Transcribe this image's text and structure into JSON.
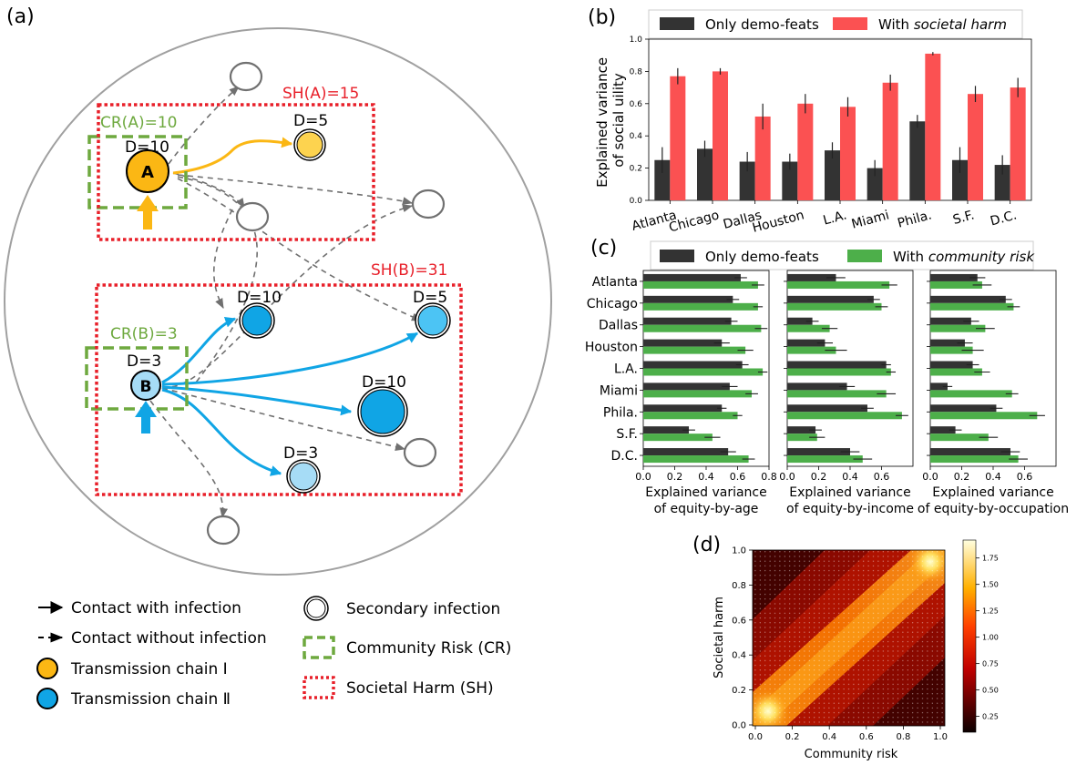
{
  "panel_a": {
    "label": "(a)",
    "nodes": {
      "a_label": "A",
      "b_label": "B",
      "a_deg": "D=10",
      "a_child_deg": "D=5",
      "b_deg": "D=3",
      "b_child1_deg": "D=10",
      "b_child2_deg": "D=5",
      "b_child3_deg": "D=10",
      "b_child4_deg": "D=3"
    },
    "cr_a": "CR(A)=10",
    "sh_a": "SH(A)=15",
    "cr_b": "CR(B)=3",
    "sh_b": "SH(B)=31",
    "legend": {
      "contact_infection": "Contact with infection",
      "contact_no_infection": "Contact without infection",
      "chain1": "Transmission chain Ⅰ",
      "chain2": "Transmission chain Ⅱ",
      "secondary": "Secondary infection",
      "cr": "Community Risk (CR)",
      "sh": "Societal Harm (SH)"
    },
    "colors": {
      "chain1": "#fbb714",
      "chain1_light": "#fdd34f",
      "chain2": "#10a5e5",
      "chain2_mid": "#4cc4f4",
      "chain2_light": "#a6dcf6",
      "cr": "#6ea93f",
      "sh": "#e8202a"
    }
  },
  "chart_data": [
    {
      "panel": "(b)",
      "type": "bar",
      "categories": [
        "Atlanta",
        "Chicago",
        "Dallas",
        "Houston",
        "L.A.",
        "Miami",
        "Phila.",
        "S.F.",
        "D.C."
      ],
      "series": [
        {
          "name": "Only demo-feats",
          "color": "#333333",
          "values": [
            0.25,
            0.32,
            0.24,
            0.24,
            0.31,
            0.2,
            0.49,
            0.25,
            0.22
          ],
          "err": [
            0.08,
            0.05,
            0.06,
            0.05,
            0.05,
            0.05,
            0.04,
            0.08,
            0.06
          ]
        },
        {
          "name_prefix": "With ",
          "name_em": "societal harm",
          "color": "#fb5152",
          "values": [
            0.77,
            0.8,
            0.52,
            0.6,
            0.58,
            0.73,
            0.91,
            0.66,
            0.7
          ],
          "err": [
            0.05,
            0.02,
            0.08,
            0.06,
            0.06,
            0.05,
            0.01,
            0.05,
            0.06
          ]
        }
      ],
      "ylabel": [
        "Explained variance",
        "of social uility"
      ],
      "ylim": [
        0,
        1.0
      ],
      "yticks": [
        "0.0",
        "0.2",
        "0.4",
        "0.6",
        "0.8",
        "1.0"
      ],
      "legend": "top"
    },
    {
      "panel": "(c)",
      "type": "bar",
      "orientation": "horizontal",
      "categories": [
        "Atlanta",
        "Chicago",
        "Dallas",
        "Houston",
        "L.A.",
        "Miami",
        "Phila.",
        "S.F.",
        "D.C."
      ],
      "legend_series": [
        {
          "name": "Only demo-feats",
          "color": "#333333"
        },
        {
          "name_prefix": "With ",
          "name_em": "community risk",
          "color": "#4daf4a"
        }
      ],
      "subplots": [
        {
          "xlabel": [
            "Explained variance",
            "of equity-by-age"
          ],
          "xlim": [
            0,
            0.8
          ],
          "xticks": [
            "0.0",
            "0.2",
            "0.4",
            "0.6",
            "0.8"
          ],
          "demo": [
            0.62,
            0.57,
            0.56,
            0.5,
            0.63,
            0.55,
            0.5,
            0.29,
            0.54
          ],
          "demo_err": [
            0.04,
            0.04,
            0.04,
            0.05,
            0.04,
            0.05,
            0.03,
            0.04,
            0.05
          ],
          "risk": [
            0.73,
            0.73,
            0.75,
            0.65,
            0.76,
            0.69,
            0.6,
            0.44,
            0.67
          ],
          "risk_err": [
            0.04,
            0.03,
            0.04,
            0.05,
            0.03,
            0.04,
            0.03,
            0.05,
            0.04
          ]
        },
        {
          "xlabel": [
            "Explained variance",
            "of equity-by-income"
          ],
          "xlim": [
            0,
            0.8
          ],
          "xticks": [
            "0.0",
            "0.2",
            "0.4",
            "0.6"
          ],
          "demo": [
            0.31,
            0.55,
            0.16,
            0.24,
            0.63,
            0.38,
            0.51,
            0.18,
            0.4
          ],
          "demo_err": [
            0.06,
            0.04,
            0.04,
            0.05,
            0.03,
            0.05,
            0.04,
            0.04,
            0.06
          ],
          "risk": [
            0.65,
            0.6,
            0.27,
            0.31,
            0.66,
            0.63,
            0.73,
            0.19,
            0.48
          ],
          "risk_err": [
            0.05,
            0.04,
            0.05,
            0.07,
            0.03,
            0.06,
            0.04,
            0.05,
            0.06
          ]
        },
        {
          "xlabel": [
            "Explained variance",
            "of equity-by-occupation"
          ],
          "xlim": [
            0,
            0.8
          ],
          "xticks": [
            "0.0",
            "0.2",
            "0.4",
            "0.6"
          ],
          "demo": [
            0.3,
            0.48,
            0.26,
            0.22,
            0.27,
            0.11,
            0.42,
            0.16,
            0.51
          ],
          "demo_err": [
            0.05,
            0.04,
            0.05,
            0.05,
            0.04,
            0.03,
            0.04,
            0.04,
            0.06
          ],
          "risk": [
            0.33,
            0.53,
            0.35,
            0.27,
            0.33,
            0.52,
            0.68,
            0.37,
            0.56
          ],
          "risk_err": [
            0.06,
            0.04,
            0.06,
            0.07,
            0.05,
            0.04,
            0.05,
            0.06,
            0.06
          ]
        }
      ]
    },
    {
      "panel": "(d)",
      "type": "heatmap",
      "xlabel": "Community risk",
      "ylabel": "Societal harm",
      "xlim": [
        0,
        1.0
      ],
      "ylim": [
        0,
        1.0
      ],
      "xticks": [
        "0.0",
        "0.2",
        "0.4",
        "0.6",
        "0.8",
        "1.0"
      ],
      "yticks": [
        "0.0",
        "0.2",
        "0.4",
        "0.6",
        "0.8",
        "1.0"
      ],
      "colorbar_ticks": [
        "0.25",
        "0.50",
        "0.75",
        "1.00",
        "1.25",
        "1.50",
        "1.75"
      ],
      "colorbar_range": [
        0.1,
        1.92
      ],
      "colormap": "hot",
      "hotspots": [
        [
          0.08,
          0.08
        ],
        [
          0.95,
          0.95
        ]
      ]
    }
  ]
}
